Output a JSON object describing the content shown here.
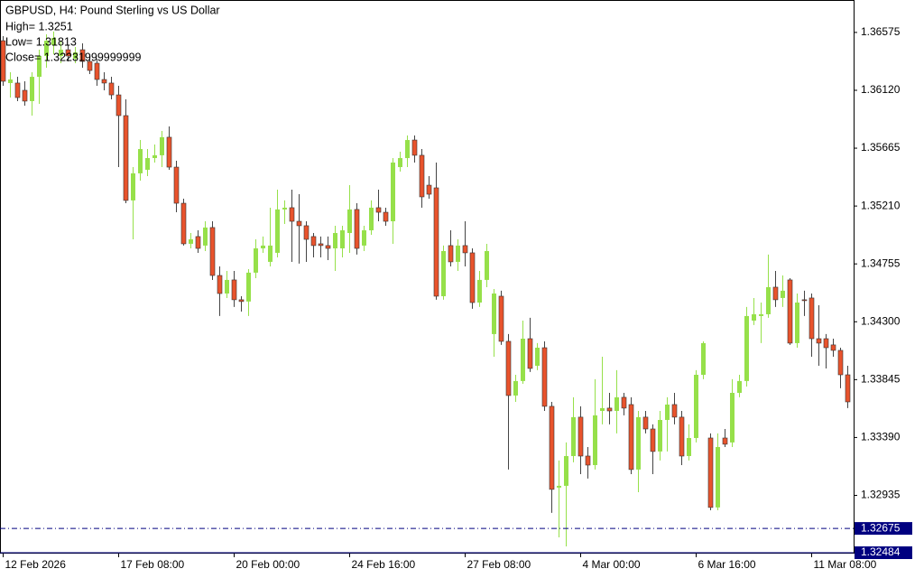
{
  "chart_data": {
    "type": "candlestick",
    "title": "GBPUSD, H4:  Pound Sterling vs US Dollar",
    "info": [
      "High= 1.3251",
      "Low= 1.31813",
      "Close= 1.32231999999999"
    ],
    "categories": [
      "12 Feb 2026",
      null,
      null,
      null,
      null,
      null,
      null,
      null,
      null,
      null,
      null,
      null,
      null,
      null,
      null,
      null,
      "17 Feb 08:00",
      null,
      null,
      null,
      null,
      null,
      null,
      null,
      null,
      null,
      null,
      null,
      null,
      null,
      null,
      null,
      "20 Feb 00:00",
      null,
      null,
      null,
      null,
      null,
      null,
      null,
      null,
      null,
      null,
      null,
      null,
      null,
      null,
      null,
      "24 Feb 16:00",
      null,
      null,
      null,
      null,
      null,
      null,
      null,
      null,
      null,
      null,
      null,
      null,
      null,
      null,
      null,
      "27 Feb 08:00",
      null,
      null,
      null,
      null,
      null,
      null,
      null,
      null,
      null,
      null,
      null,
      null,
      null,
      null,
      null,
      "4 Mar 00:00",
      null,
      null,
      null,
      null,
      null,
      null,
      null,
      null,
      null,
      null,
      null,
      null,
      null,
      null,
      null,
      "6 Mar 16:00",
      null,
      null,
      null,
      null,
      null,
      null,
      null,
      null,
      null,
      null,
      null,
      null,
      null,
      null,
      null,
      "11 Mar 08:00",
      null,
      null,
      null,
      null,
      null
    ],
    "open": [
      1.3651,
      1.36177,
      1.36177,
      1.3612,
      1.36035,
      1.36226,
      1.3639,
      1.36475,
      1.3639,
      1.36439,
      1.36368,
      1.36439,
      1.36347,
      1.36333,
      1.36205,
      1.36177,
      1.36084,
      1.35921,
      1.35254,
      1.35467,
      1.35495,
      1.35587,
      1.35609,
      1.35751,
      1.35516,
      1.35232,
      1.34913,
      1.3497,
      1.34899,
      1.35041,
      1.34664,
      1.34522,
      1.34629,
      1.34473,
      1.34459,
      1.34686,
      1.34877,
      1.34771,
      1.34842,
      1.35183,
      1.35197,
      1.3509,
      1.35055,
      1.3497,
      1.34913,
      1.34899,
      1.34877,
      1.34877,
      1.34998,
      1.35183,
      1.34899,
      1.35019,
      1.35197,
      1.35161,
      1.3509,
      1.35516,
      1.35587,
      1.35729,
      1.35609,
      1.35374,
      1.35353,
      1.34501,
      1.34899,
      1.34771,
      1.34899,
      1.34842,
      1.34451,
      1.34629,
      1.34203,
      1.34501,
      1.34146,
      1.3372,
      1.33834,
      1.34167,
      1.33954,
      1.34096,
      1.33635,
      1.32996,
      1.3301,
      1.33244,
      1.3355,
      1.33244,
      1.33173,
      1.33599,
      1.33621,
      1.33599,
      1.33706,
      1.33649,
      1.33138,
      1.3355,
      1.33457,
      1.3328,
      1.33528,
      1.33649,
      1.3355,
      1.33244,
      1.33386,
      1.33883,
      1.33386,
      1.3284,
      1.33386,
      1.33351,
      1.33741,
      1.33834,
      1.34309,
      1.34345,
      1.34359,
      1.34572,
      1.34487,
      1.34629,
      1.34132,
      1.34473,
      1.34487,
      1.34167,
      1.34167,
      1.34118,
      1.34075,
      1.33883
    ],
    "high": [
      1.36546,
      1.36262,
      1.36226,
      1.36191,
      1.36262,
      1.36439,
      1.3656,
      1.36582,
      1.3651,
      1.36475,
      1.36461,
      1.36489,
      1.36404,
      1.36368,
      1.36262,
      1.36226,
      1.36155,
      1.36049,
      1.35516,
      1.35729,
      1.35658,
      1.35694,
      1.358,
      1.35836,
      1.35566,
      1.35268,
      1.34998,
      1.35019,
      1.3509,
      1.3509,
      1.34735,
      1.347,
      1.347,
      1.34501,
      1.34714,
      1.34948,
      1.3497,
      1.35197,
      1.35339,
      1.35254,
      1.35339,
      1.35303,
      1.3509,
      1.34998,
      1.3497,
      1.3497,
      1.35055,
      1.35055,
      1.35374,
      1.35232,
      1.35055,
      1.35254,
      1.35339,
      1.35197,
      1.35587,
      1.35637,
      1.35765,
      1.35765,
      1.35658,
      1.35445,
      1.35552,
      1.34899,
      1.35019,
      1.34948,
      1.3509,
      1.34877,
      1.347,
      1.34913,
      1.34558,
      1.34544,
      1.34203,
      1.33883,
      1.34309,
      1.34331,
      1.34132,
      1.34146,
      1.3367,
      1.33209,
      1.33351,
      1.33706,
      1.33635,
      1.33315,
      1.33848,
      1.34025,
      1.33741,
      1.33919,
      1.33741,
      1.33706,
      1.33599,
      1.33599,
      1.33493,
      1.33599,
      1.33706,
      1.33741,
      1.33599,
      1.33493,
      1.33919,
      1.34146,
      1.33422,
      1.33422,
      1.33457,
      1.33848,
      1.33883,
      1.34416,
      1.34487,
      1.34451,
      1.34828,
      1.347,
      1.34664,
      1.34643,
      1.34522,
      1.34544,
      1.34522,
      1.3443,
      1.34203,
      1.34167,
      1.34096,
      1.33954
    ],
    "low": [
      1.36155,
      1.36063,
      1.36035,
      1.35999,
      1.35921,
      1.36013,
      1.36297,
      1.36404,
      1.36333,
      1.36347,
      1.36333,
      1.36297,
      1.36248,
      1.36155,
      1.3612,
      1.36049,
      1.35516,
      1.35232,
      1.34948,
      1.3541,
      1.35445,
      1.35552,
      1.35516,
      1.35495,
      1.35161,
      1.34899,
      1.34877,
      1.34842,
      1.34856,
      1.34629,
      1.34345,
      1.34487,
      1.34416,
      1.3438,
      1.34345,
      1.34643,
      1.34842,
      1.34735,
      1.34806,
      1.35069,
      1.34771,
      1.34757,
      1.34771,
      1.34806,
      1.34806,
      1.34785,
      1.347,
      1.34806,
      1.34842,
      1.34828,
      1.34856,
      1.34984,
      1.3509,
      1.35055,
      1.34913,
      1.35481,
      1.35516,
      1.35552,
      1.35197,
      1.35268,
      1.34473,
      1.34473,
      1.34735,
      1.347,
      1.34735,
      1.34402,
      1.34416,
      1.34572,
      1.34025,
      1.34118,
      1.33138,
      1.3367,
      1.33812,
      1.33905,
      1.33919,
      1.33599,
      1.32797,
      1.32605,
      1.32534,
      1.33195,
      1.33102,
      1.33067,
      1.33138,
      1.33493,
      1.33493,
      1.33422,
      1.33564,
      1.33102,
      1.3296,
      1.33422,
      1.33102,
      1.33209,
      1.3328,
      1.33493,
      1.33173,
      1.33209,
      1.33351,
      1.33848,
      1.32818,
      1.32818,
      1.33315,
      1.33315,
      1.33706,
      1.33791,
      1.34274,
      1.34132,
      1.34331,
      1.34416,
      1.34416,
      1.34118,
      1.34096,
      1.34345,
      1.34025,
      1.33954,
      1.33933,
      1.34025,
      1.33777,
      1.33621
    ],
    "close": [
      1.36191,
      1.36205,
      1.36063,
      1.36035,
      1.36226,
      1.3639,
      1.3651,
      1.36532,
      1.36439,
      1.3639,
      1.36418,
      1.36347,
      1.36276,
      1.36205,
      1.36177,
      1.36084,
      1.35921,
      1.35254,
      1.35467,
      1.35658,
      1.35587,
      1.35609,
      1.35751,
      1.35516,
      1.35232,
      1.34913,
      1.34948,
      1.34877,
      1.35041,
      1.34664,
      1.34522,
      1.34629,
      1.34473,
      1.34459,
      1.34686,
      1.34877,
      1.34899,
      1.34899,
      1.35183,
      1.35197,
      1.3509,
      1.35055,
      1.34948,
      1.34899,
      1.34899,
      1.34877,
      1.34998,
      1.35019,
      1.35183,
      1.34877,
      1.35019,
      1.35197,
      1.35161,
      1.3509,
      1.35552,
      1.35587,
      1.35729,
      1.35609,
      1.35282,
      1.35303,
      1.34501,
      1.34856,
      1.34771,
      1.34899,
      1.34842,
      1.34451,
      1.34629,
      1.34856,
      1.34522,
      1.34146,
      1.3372,
      1.33834,
      1.34167,
      1.33933,
      1.34096,
      1.33635,
      1.32982,
      1.3301,
      1.33244,
      1.3355,
      1.33244,
      1.33173,
      1.33564,
      1.33621,
      1.33599,
      1.33706,
      1.33621,
      1.33138,
      1.3355,
      1.33457,
      1.3328,
      1.33528,
      1.33649,
      1.3355,
      1.33244,
      1.33386,
      1.33883,
      1.34132,
      1.3284,
      1.33315,
      1.33337,
      1.33741,
      1.33834,
      1.34345,
      1.34359,
      1.34359,
      1.34572,
      1.34473,
      1.34544,
      1.34132,
      1.34451,
      1.34466,
      1.34167,
      1.34132,
      1.34096,
      1.34075,
      1.33883,
      1.3367
    ],
    "up_color": "#96e04a",
    "down_color": "#e8532c",
    "ylim": [
      1.32484,
      1.3683
    ],
    "yticks": [
      1.36575,
      {
        "value": 1.3612,
        "label": "1.36120"
      },
      1.35665,
      {
        "value": 1.3521,
        "label": "1.35210"
      },
      1.34755,
      {
        "value": 1.343,
        "label": "1.34300"
      },
      1.33845,
      {
        "value": 1.3339,
        "label": "1.33390"
      },
      1.32935
    ],
    "price_lines": [
      {
        "value": 1.32675,
        "style": "dash-dot"
      },
      {
        "value": 1.32484,
        "style": "solid"
      }
    ],
    "price_line_color": "#000080"
  }
}
